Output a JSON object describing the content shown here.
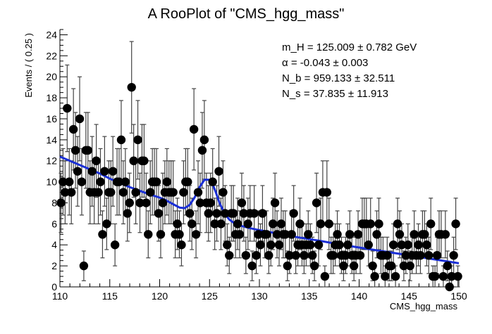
{
  "chart_data": {
    "type": "scatter",
    "title": "A RooPlot of \"CMS_hgg_mass\"",
    "xlabel": "CMS_hgg_mass",
    "ylabel": "Events / ( 0.25 )",
    "xlim": [
      110,
      150
    ],
    "ylim": [
      0,
      24.5
    ],
    "xticks": [
      110,
      115,
      120,
      125,
      130,
      135,
      140,
      145,
      150
    ],
    "yticks": [
      0,
      2,
      4,
      6,
      8,
      10,
      12,
      14,
      16,
      18,
      20,
      22,
      24
    ],
    "grid": false,
    "legend": "none",
    "annotations": [
      "m_H = 125.009 ± 0.782 GeV",
      "α = -0.043 ± 0.003",
      "N_b = 959.133 ± 32.511",
      "N_s = 37.835 ± 11.913"
    ],
    "series": [
      {
        "type": "points",
        "values": [
          8,
          10,
          9,
          17,
          10,
          9,
          15,
          13,
          11,
          16,
          10,
          2,
          13,
          13,
          9,
          11,
          9,
          12,
          9,
          10,
          5,
          11,
          6,
          9,
          9,
          11,
          4,
          10,
          10,
          14,
          9,
          10,
          7,
          8,
          19,
          12,
          9,
          14,
          8,
          12,
          12,
          8,
          5,
          9,
          10,
          10,
          10,
          7,
          5,
          8,
          9,
          10,
          9,
          9,
          9,
          5,
          6,
          5,
          4,
          9,
          10,
          10,
          7,
          6,
          15,
          5,
          9,
          8,
          13,
          14,
          8,
          7,
          8,
          10,
          6,
          7,
          11,
          6,
          9,
          7,
          4,
          3,
          7,
          7,
          5,
          6,
          5,
          8,
          7,
          3,
          6,
          7,
          2,
          7,
          3,
          5,
          4,
          7,
          5,
          5,
          3,
          4,
          6,
          8,
          5,
          4,
          6,
          5,
          5,
          2,
          3,
          5,
          7,
          3,
          4,
          6,
          4,
          3,
          4,
          5,
          4,
          3,
          2,
          8,
          4,
          6,
          9,
          1,
          9,
          6,
          3,
          3,
          4,
          5,
          4,
          3,
          2,
          3,
          4,
          5,
          3,
          2,
          3,
          5,
          3,
          6,
          6,
          6,
          4,
          6,
          2,
          1,
          5,
          6,
          3,
          3,
          1,
          3,
          2,
          2,
          4,
          1,
          6,
          5,
          4,
          2,
          3,
          4,
          2,
          3,
          5,
          3,
          4,
          3,
          5,
          5,
          4,
          3,
          6,
          1,
          1,
          3,
          5,
          5,
          1,
          5,
          2,
          0,
          1,
          3,
          6,
          1
        ]
      },
      {
        "type": "line",
        "color": "#1a2fd6",
        "x": [
          110,
          111,
          112,
          113,
          114,
          115,
          116,
          117,
          118,
          119,
          120,
          120.5,
          121,
          121.5,
          122,
          122.5,
          123,
          123.5,
          124,
          124.5,
          125,
          125.3,
          125.6,
          126,
          126.5,
          127,
          127.5,
          128,
          129,
          130,
          132,
          134,
          136,
          138,
          140,
          142,
          144,
          146,
          148,
          150
        ],
        "values": [
          12.4,
          12.0,
          11.6,
          11.2,
          10.8,
          10.3,
          9.9,
          9.5,
          9.15,
          8.8,
          8.5,
          8.3,
          8.05,
          7.8,
          7.55,
          7.5,
          7.8,
          8.5,
          9.5,
          10.2,
          10.2,
          9.8,
          9.1,
          8.0,
          7.0,
          6.4,
          6.05,
          5.85,
          5.6,
          5.4,
          5.05,
          4.7,
          4.4,
          4.05,
          3.75,
          3.45,
          3.15,
          2.85,
          2.55,
          2.25
        ]
      }
    ]
  }
}
